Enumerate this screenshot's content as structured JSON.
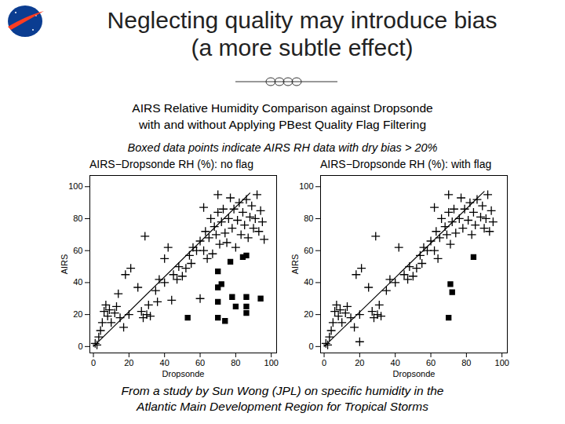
{
  "slide": {
    "title": [
      "Neglecting quality may introduce bias",
      "(a more subtle effect)"
    ],
    "subtitle": [
      "AIRS Relative Humidity Comparison against Dropsonde",
      "with and without Applying PBest Quality Flag Filtering"
    ],
    "note": "Boxed data points indicate AIRS RH data with dry bias > 20%",
    "caption": [
      "From a study by Sun Wong (JPL) on specific humidity in the",
      "Atlantic Main Development Region for Tropical Storms"
    ]
  },
  "chart_data": [
    {
      "type": "scatter",
      "title": "AIRS−Dropsonde RH (%): no flag",
      "x_label": "Dropsonde",
      "y_label": "AIRS",
      "xlim": [
        -2,
        103
      ],
      "ylim": [
        -4,
        107
      ],
      "xticks": [
        0,
        20,
        40,
        60,
        80,
        100
      ],
      "yticks": [
        0,
        20,
        40,
        60,
        80,
        100
      ],
      "series": [
        {
          "marker": "plus",
          "color": "#000000",
          "x": [
            1,
            3,
            4,
            5,
            6,
            7,
            8,
            9,
            10,
            12,
            13,
            15,
            14,
            18,
            21,
            25,
            27,
            28,
            30,
            31,
            32,
            29,
            35,
            37,
            40,
            42,
            44,
            45,
            47,
            48,
            50,
            52,
            54,
            55,
            56,
            58,
            60,
            60,
            62,
            63,
            64,
            65,
            66,
            67,
            68,
            69,
            70,
            71,
            72,
            73,
            74,
            75,
            76,
            77,
            78,
            79,
            80,
            81,
            82,
            83,
            84,
            85,
            86,
            87,
            88,
            89,
            90,
            91,
            92,
            93,
            94,
            95,
            96,
            62,
            70,
            40,
            36,
            20,
            17,
            2
          ],
          "values": [
            2,
            6,
            10,
            15,
            22,
            26,
            19,
            23,
            15,
            21,
            25,
            18,
            33,
            45,
            49,
            37,
            22,
            18,
            20,
            26,
            19,
            69,
            35,
            42,
            40,
            62,
            29,
            45,
            42,
            50,
            44,
            49,
            57,
            52,
            62,
            60,
            66,
            30,
            60,
            72,
            55,
            68,
            80,
            58,
            75,
            70,
            84,
            64,
            78,
            86,
            71,
            65,
            80,
            93,
            74,
            86,
            62,
            79,
            90,
            70,
            84,
            76,
            92,
            68,
            81,
            88,
            74,
            80,
            95,
            72,
            85,
            78,
            67,
            87,
            95,
            55,
            28,
            20,
            12,
            1
          ]
        },
        {
          "marker": "square",
          "color": "#000000",
          "x": [
            77,
            84,
            86,
            70,
            72,
            70,
            78,
            86,
            94,
            86,
            80,
            70,
            74,
            86,
            53,
            70
          ],
          "values": [
            53,
            56,
            57,
            37,
            39,
            28,
            31,
            31,
            30,
            25,
            25,
            18,
            16,
            21,
            18,
            47
          ]
        },
        {
          "type": "line",
          "color": "#000000",
          "x": [
            0,
            88
          ],
          "values": [
            0,
            96
          ]
        }
      ]
    },
    {
      "type": "scatter",
      "title": "AIRS−Dropsonde RH (%): with flag",
      "x_label": "Dropsonde",
      "y_label": "AIRS",
      "xlim": [
        -2,
        103
      ],
      "ylim": [
        -4,
        107
      ],
      "xticks": [
        0,
        20,
        40,
        60,
        80,
        100
      ],
      "yticks": [
        0,
        20,
        40,
        60,
        80,
        100
      ],
      "series": [
        {
          "marker": "plus",
          "color": "#000000",
          "x": [
            1,
            3,
            4,
            5,
            6,
            7,
            8,
            9,
            10,
            12,
            13,
            15,
            18,
            21,
            25,
            27,
            28,
            30,
            31,
            32,
            29,
            35,
            37,
            40,
            42,
            45,
            47,
            48,
            50,
            52,
            54,
            55,
            56,
            58,
            60,
            62,
            63,
            64,
            65,
            66,
            68,
            69,
            70,
            71,
            72,
            73,
            74,
            76,
            77,
            78,
            79,
            81,
            82,
            83,
            84,
            85,
            86,
            88,
            89,
            90,
            91,
            92,
            93,
            94,
            95,
            62,
            70,
            20,
            17,
            2,
            20
          ],
          "values": [
            2,
            6,
            10,
            15,
            22,
            26,
            19,
            23,
            15,
            21,
            25,
            18,
            45,
            49,
            37,
            22,
            18,
            20,
            26,
            19,
            69,
            35,
            42,
            40,
            62,
            45,
            42,
            50,
            44,
            49,
            57,
            52,
            62,
            60,
            66,
            60,
            72,
            55,
            68,
            80,
            75,
            70,
            84,
            64,
            78,
            86,
            71,
            80,
            93,
            74,
            86,
            79,
            90,
            70,
            84,
            76,
            92,
            81,
            88,
            74,
            80,
            95,
            72,
            85,
            78,
            87,
            95,
            20,
            12,
            1,
            3
          ]
        },
        {
          "marker": "square",
          "color": "#000000",
          "x": [
            71,
            72,
            84,
            70
          ],
          "values": [
            39,
            34,
            56,
            18
          ]
        },
        {
          "type": "line",
          "color": "#000000",
          "x": [
            0,
            90
          ],
          "values": [
            0,
            97
          ]
        }
      ]
    }
  ]
}
